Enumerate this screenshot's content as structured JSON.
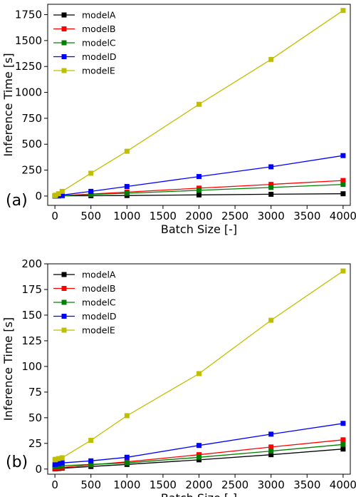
{
  "chart_data": [
    {
      "type": "line",
      "panel_label": "(a)",
      "xlabel": "Batch Size [-]",
      "ylabel": "Inference Time [s]",
      "xlim": [
        -100,
        4100
      ],
      "ylim": [
        -90,
        1850
      ],
      "xticks": [
        0,
        500,
        1000,
        1500,
        2000,
        2500,
        3000,
        3500,
        4000
      ],
      "yticks": [
        0,
        250,
        500,
        750,
        1000,
        1250,
        1500,
        1750
      ],
      "grid": false,
      "legend_position": "top-left",
      "x": [
        1,
        10,
        50,
        100,
        500,
        1000,
        2000,
        3000,
        4000
      ],
      "series": [
        {
          "name": "modelA",
          "color": "#000000",
          "values": [
            1,
            1,
            1,
            2,
            3,
            5,
            11,
            17,
            22
          ]
        },
        {
          "name": "modelB",
          "color": "#ff0000",
          "values": [
            1,
            1,
            2,
            4,
            19,
            38,
            76,
            112,
            150
          ]
        },
        {
          "name": "modelC",
          "color": "#008000",
          "values": [
            1,
            1,
            2,
            3,
            14,
            27,
            55,
            83,
            112
          ]
        },
        {
          "name": "modelD",
          "color": "#0000ff",
          "values": [
            1,
            2,
            5,
            10,
            45,
            92,
            188,
            282,
            390
          ]
        },
        {
          "name": "modelE",
          "color": "#bfbf00",
          "values": [
            4,
            8,
            22,
            45,
            220,
            432,
            885,
            1318,
            1790
          ]
        }
      ]
    },
    {
      "type": "line",
      "panel_label": "(b)",
      "xlabel": "Batch Size [-]",
      "ylabel": "Inference Time [s]",
      "xlim": [
        -100,
        4100
      ],
      "ylim": [
        -5,
        200
      ],
      "xticks": [
        0,
        500,
        1000,
        1500,
        2000,
        2500,
        3000,
        3500,
        4000
      ],
      "yticks": [
        0,
        25,
        50,
        75,
        100,
        125,
        150,
        175,
        200
      ],
      "grid": false,
      "legend_position": "top-left",
      "x": [
        1,
        10,
        50,
        100,
        500,
        1000,
        2000,
        3000,
        4000
      ],
      "series": [
        {
          "name": "modelA",
          "color": "#000000",
          "values": [
            0.2,
            0.3,
            0.5,
            0.8,
            2.5,
            4.5,
            9,
            14,
            19.5
          ]
        },
        {
          "name": "modelB",
          "color": "#ff0000",
          "values": [
            0.5,
            0.7,
            1.0,
            1.5,
            4,
            7,
            14,
            21.5,
            28.5
          ]
        },
        {
          "name": "modelC",
          "color": "#008000",
          "values": [
            2.5,
            2.7,
            3.0,
            3.3,
            4.5,
            6,
            11.5,
            17.5,
            24
          ]
        },
        {
          "name": "modelD",
          "color": "#0000ff",
          "values": [
            4.5,
            4.8,
            5.3,
            6,
            8,
            11.5,
            23,
            34,
            44.5
          ]
        },
        {
          "name": "modelE",
          "color": "#bfbf00",
          "values": [
            9,
            9.5,
            10.2,
            11,
            28,
            52,
            93,
            145,
            193
          ]
        }
      ]
    }
  ]
}
